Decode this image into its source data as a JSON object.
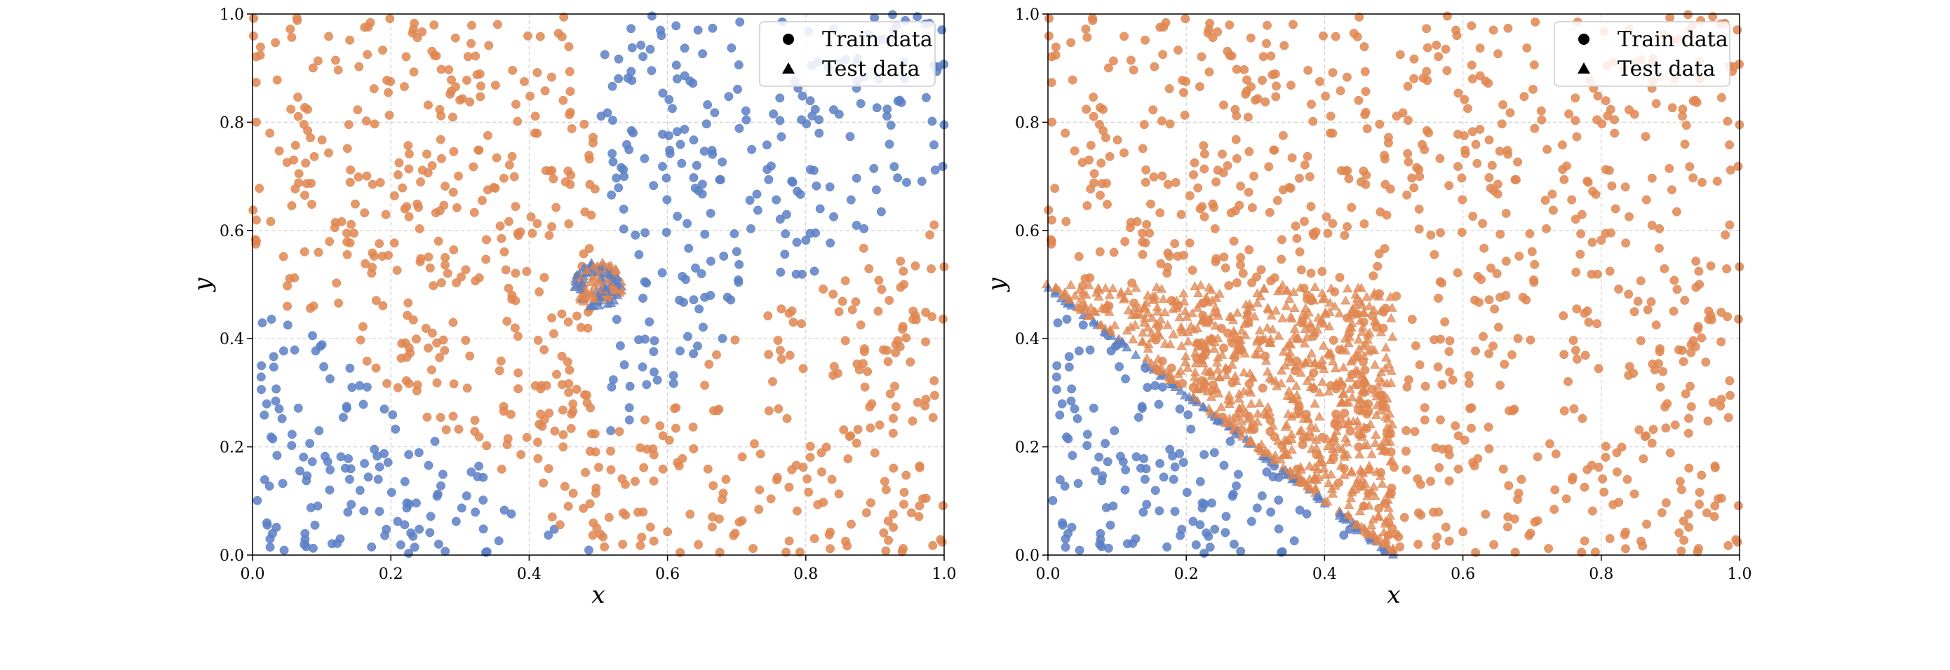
{
  "colors": {
    "class_blue": "#5a7fc6",
    "class_orange": "#e08650",
    "grid": "#cfcfcf",
    "axis": "#000000"
  },
  "legend": {
    "placement": "upper-right",
    "train_label": "Train data",
    "train_marker": "circle",
    "test_label": "Test data",
    "test_marker": "triangle"
  },
  "chart_data": [
    {
      "type": "scatter",
      "xlabel": "x",
      "ylabel": "y",
      "xlim": [
        0.0,
        1.0
      ],
      "ylim": [
        0.0,
        1.0
      ],
      "xticks": [
        "0.0",
        "0.2",
        "0.4",
        "0.6",
        "0.8",
        "1.0"
      ],
      "yticks": [
        "0.0",
        "0.2",
        "0.4",
        "0.6",
        "0.8",
        "1.0"
      ],
      "grid": true,
      "train_rule": "blue where y < 0.5 - x or (x > 0.5 and y > x - 0.3), otherwise orange (x, y uniform on [0,1], 1000 points)",
      "test_cluster": {
        "center": [
          0.5,
          0.5
        ],
        "radius": 0.035,
        "count": 130,
        "classes": "mixed blue and orange"
      }
    },
    {
      "type": "scatter",
      "xlabel": "x",
      "ylabel": "y",
      "xlim": [
        0.0,
        1.0
      ],
      "ylim": [
        0.0,
        1.0
      ],
      "xticks": [
        "0.0",
        "0.2",
        "0.4",
        "0.6",
        "0.8",
        "1.0"
      ],
      "yticks": [
        "0.0",
        "0.2",
        "0.4",
        "0.6",
        "0.8",
        "1.0"
      ],
      "grid": true,
      "train_rule": "blue where y < 0.5 - x, otherwise orange (x, y uniform on [0,1], 1000 points)",
      "test_line": {
        "from": [
          0.0,
          0.5
        ],
        "to": [
          0.5,
          0.0
        ],
        "count": 180,
        "classes": "blue below line, orange above"
      },
      "test_region": {
        "x_range": [
          0.0,
          0.5
        ],
        "y_range": [
          0.0,
          0.5
        ],
        "constraint": "y > 0.5 - x",
        "count": 650,
        "class": "orange"
      }
    }
  ]
}
